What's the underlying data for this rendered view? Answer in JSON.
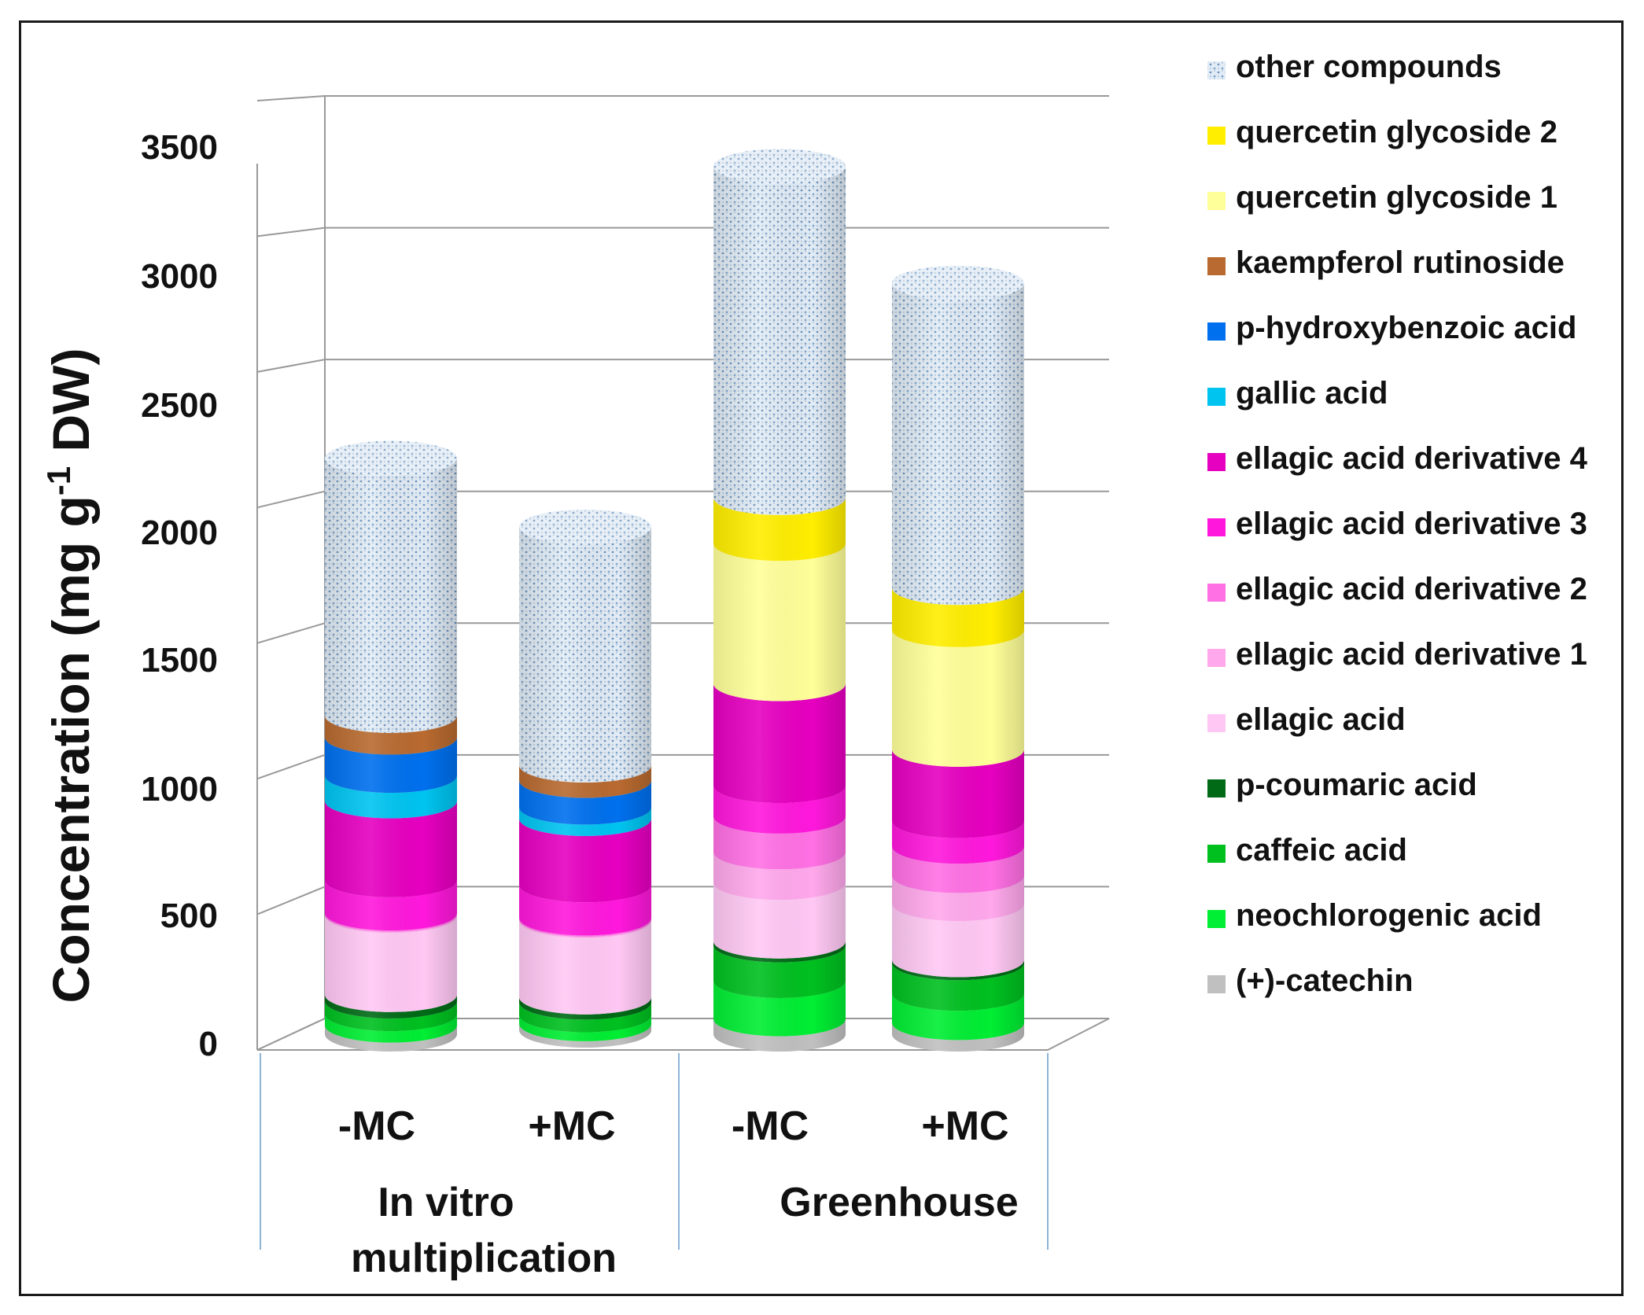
{
  "chart_data": {
    "type": "bar",
    "subtype": "stacked-3d-cylinder",
    "title": "",
    "ylabel": "Concentration (mg g-1 DW)",
    "ylabel_parts": {
      "main": "Concentration (mg g",
      "sup": "-1",
      "tail": " DW)"
    },
    "ylim": [
      0,
      3500
    ],
    "yticks": [
      0,
      500,
      1000,
      1500,
      2000,
      2500,
      3000,
      3500
    ],
    "grid": true,
    "legend_position": "right",
    "bars": [
      "-MC",
      "+MC",
      "-MC",
      "+MC"
    ],
    "groups": [
      {
        "label": "In vitro multiplication",
        "lines": [
          "In vitro",
          "multiplication"
        ]
      },
      {
        "label": "Greenhouse",
        "lines": [
          "Greenhouse"
        ]
      }
    ],
    "series": [
      {
        "name": "(+)-catechin",
        "color": "#c0c0c0",
        "values": [
          35,
          25,
          60,
          45
        ]
      },
      {
        "name": "neochlorogenic acid",
        "color": "#00ee33",
        "values": [
          45,
          35,
          150,
          115
        ]
      },
      {
        "name": "caffeic acid",
        "color": "#00c020",
        "values": [
          50,
          50,
          140,
          120
        ]
      },
      {
        "name": "p-coumaric acid",
        "color": "#006a16",
        "values": [
          25,
          20,
          15,
          12
        ]
      },
      {
        "name": "ellagic acid",
        "color": "#ffc8f4",
        "values": [
          310,
          300,
          230,
          220
        ]
      },
      {
        "name": "ellagic acid derivative 1",
        "color": "#ffa8ec",
        "values": [
          5,
          5,
          120,
          110
        ]
      },
      {
        "name": "ellagic acid derivative 2",
        "color": "#ff70e4",
        "values": [
          5,
          5,
          140,
          115
        ]
      },
      {
        "name": "ellagic acid derivative 3",
        "color": "#ff18dc",
        "values": [
          130,
          130,
          120,
          100
        ]
      },
      {
        "name": "ellagic acid derivative 4",
        "color": "#e600c0",
        "values": [
          310,
          260,
          400,
          280
        ]
      },
      {
        "name": "gallic acid",
        "color": "#00c4f0",
        "values": [
          100,
          45,
          0,
          0
        ]
      },
      {
        "name": "p-hydroxybenzoic acid",
        "color": "#0070ee",
        "values": [
          150,
          105,
          0,
          0
        ]
      },
      {
        "name": "kaempferol rutinoside",
        "color": "#b86a30",
        "values": [
          85,
          60,
          0,
          0
        ]
      },
      {
        "name": "quercetin glycoside 1",
        "color": "#ffff99",
        "values": [
          0,
          0,
          550,
          470
        ]
      },
      {
        "name": "quercetin glycoside 2",
        "color": "#ffee00",
        "values": [
          0,
          0,
          180,
          165
        ]
      },
      {
        "name": "other compounds",
        "color": "#dde8f2",
        "pattern": "dotted",
        "values": [
          1010,
          935,
          1300,
          1195
        ]
      }
    ]
  }
}
